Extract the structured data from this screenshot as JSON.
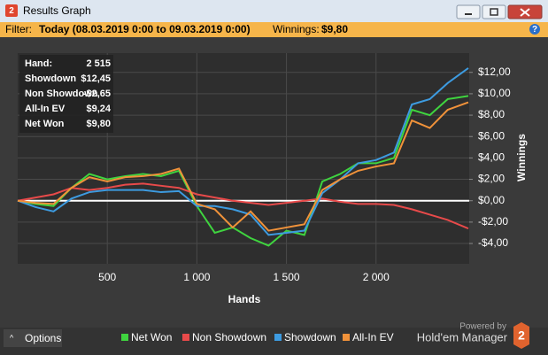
{
  "window": {
    "logo": "2",
    "title": "Results Graph"
  },
  "filter": {
    "label": "Filter:",
    "value": "Today (08.03.2019 0:00 to 09.03.2019 0:00)",
    "winnings_label": "Winnings:",
    "winnings": "$9,80",
    "help": "?"
  },
  "stats": [
    {
      "label": "Hand:",
      "value": "2 515"
    },
    {
      "label": "Showdown",
      "value": "$12,45"
    },
    {
      "label": "Non Showdown",
      "value": "-$2,65"
    },
    {
      "label": "All-In EV",
      "value": "$9,24"
    },
    {
      "label": "Net Won",
      "value": "$9,80"
    }
  ],
  "chart_data": {
    "type": "line",
    "xlabel": "Hands",
    "ylabel": "Winnings",
    "x": [
      0,
      100,
      200,
      300,
      400,
      500,
      600,
      700,
      800,
      900,
      1000,
      1100,
      1200,
      1300,
      1400,
      1500,
      1600,
      1700,
      1800,
      1900,
      2000,
      2100,
      2200,
      2300,
      2400,
      2515
    ],
    "series": [
      {
        "name": "Net Won",
        "color": "#3fd43f",
        "values": [
          0,
          -0.3,
          -0.5,
          1.2,
          2.5,
          2.0,
          2.3,
          2.5,
          2.3,
          2.8,
          -0.5,
          -3.0,
          -2.5,
          -3.5,
          -4.2,
          -2.8,
          -3.2,
          1.8,
          2.5,
          3.5,
          3.5,
          4.0,
          8.5,
          8.0,
          9.5,
          9.8
        ]
      },
      {
        "name": "Non Showdown",
        "color": "#e84a4a",
        "values": [
          0,
          0.3,
          0.6,
          1.2,
          1.0,
          1.2,
          1.5,
          1.6,
          1.4,
          1.2,
          0.6,
          0.3,
          0.0,
          -0.2,
          -0.4,
          -0.2,
          0.0,
          0.2,
          -0.1,
          -0.3,
          -0.3,
          -0.4,
          -0.8,
          -1.3,
          -1.8,
          -2.6
        ]
      },
      {
        "name": "Showdown",
        "color": "#3d9be0",
        "values": [
          0,
          -0.6,
          -1.0,
          0.2,
          0.8,
          1.0,
          1.0,
          1.0,
          0.8,
          0.9,
          -0.5,
          -0.5,
          -0.8,
          -1.3,
          -3.2,
          -3.0,
          -2.8,
          0.7,
          2.0,
          3.5,
          3.8,
          4.5,
          9.0,
          9.5,
          11.0,
          12.4
        ]
      },
      {
        "name": "All-In EV",
        "color": "#f0923a",
        "values": [
          0,
          -0.2,
          -0.3,
          1.2,
          2.2,
          1.8,
          2.2,
          2.3,
          2.5,
          3.0,
          -0.3,
          -0.8,
          -2.5,
          -1.0,
          -2.8,
          -2.5,
          -2.2,
          1.0,
          2.0,
          2.8,
          3.2,
          3.5,
          7.5,
          6.8,
          8.5,
          9.2
        ]
      }
    ],
    "xlim": [
      0,
      2520
    ],
    "ylim": [
      -5.9,
      13.8
    ],
    "xticks": [
      500,
      {
        "value": 1000,
        "label": "1 000"
      },
      {
        "value": 1500,
        "label": "1 500"
      },
      {
        "value": 2000,
        "label": "2 000"
      }
    ],
    "yticks": [
      {
        "value": -4,
        "label": "-$4,00"
      },
      {
        "value": -2,
        "label": "-$2,00"
      },
      {
        "value": 0,
        "label": "$0,00"
      },
      {
        "value": 2,
        "label": "$2,00"
      },
      {
        "value": 4,
        "label": "$4,00"
      },
      {
        "value": 6,
        "label": "$6,00"
      },
      {
        "value": 8,
        "label": "$8,00"
      },
      {
        "value": 10,
        "label": "$10,00"
      },
      {
        "value": 12,
        "label": "$12,00"
      }
    ],
    "grid": true
  },
  "footer": {
    "options": "Options",
    "powered_by": "Powered by",
    "brand": "Hold'em Manager",
    "logo": "2"
  }
}
